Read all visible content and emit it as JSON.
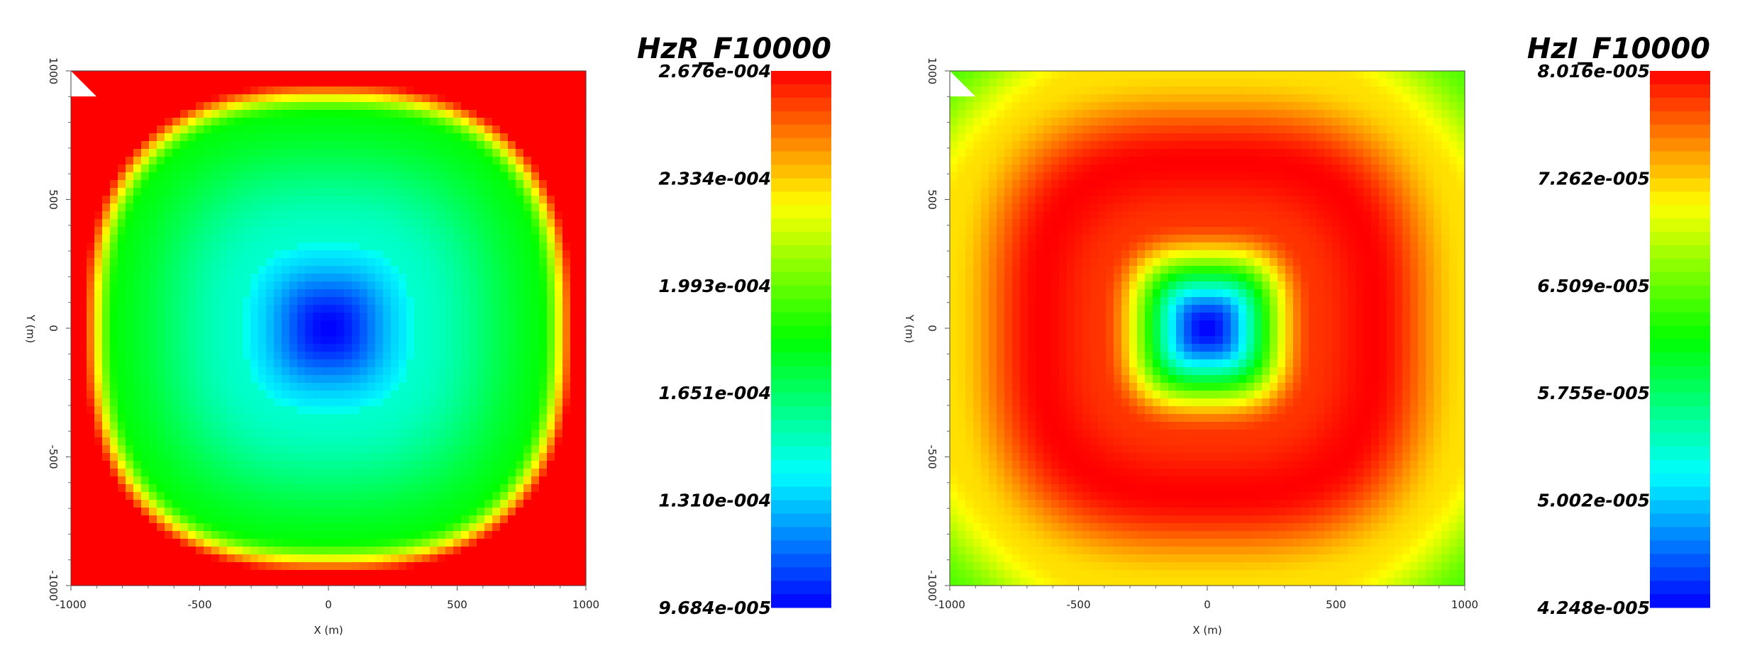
{
  "chart_data": [
    {
      "type": "heatmap",
      "title": "HzR_F10000",
      "xlabel": "X (m)",
      "ylabel": "Y (m)",
      "xlim": [
        -1000,
        1000
      ],
      "ylim": [
        -1000,
        1000
      ],
      "x_ticks": [
        "-1000",
        "-500",
        "0",
        "500",
        "1000"
      ],
      "y_ticks": [
        "-1000",
        "-500",
        "0",
        "500",
        "1000"
      ],
      "colorbar_ticks": [
        "2.676e-004",
        "2.334e-004",
        "1.993e-004",
        "1.651e-004",
        "1.310e-004",
        "9.684e-005"
      ],
      "colorbar_range": [
        9.684e-05,
        0.0002676
      ],
      "field": {
        "center_value": 9.684e-05,
        "corner_value": 0.0002676,
        "core_radius_m": 330
      }
    },
    {
      "type": "heatmap",
      "title": "HzI_F10000",
      "xlabel": "X (m)",
      "ylabel": "Y (m)",
      "xlim": [
        -1000,
        1000
      ],
      "ylim": [
        -1000,
        1000
      ],
      "x_ticks": [
        "-1000",
        "-500",
        "0",
        "500",
        "1000"
      ],
      "y_ticks": [
        "-1000",
        "-500",
        "0",
        "500",
        "1000"
      ],
      "colorbar_ticks": [
        "8.016e-005",
        "7.262e-005",
        "6.509e-005",
        "5.755e-005",
        "5.002e-005",
        "4.248e-005"
      ],
      "colorbar_range": [
        4.248e-05,
        8.016e-05
      ],
      "field": {
        "center_value": 4.248e-05,
        "peak_value": 8.016e-05,
        "peak_radius_m": 650,
        "corner_value": 7.262e-05
      }
    }
  ],
  "colormap": [
    "#0000ff",
    "#00ffff",
    "#00ff00",
    "#ffff00",
    "#ff0000"
  ]
}
